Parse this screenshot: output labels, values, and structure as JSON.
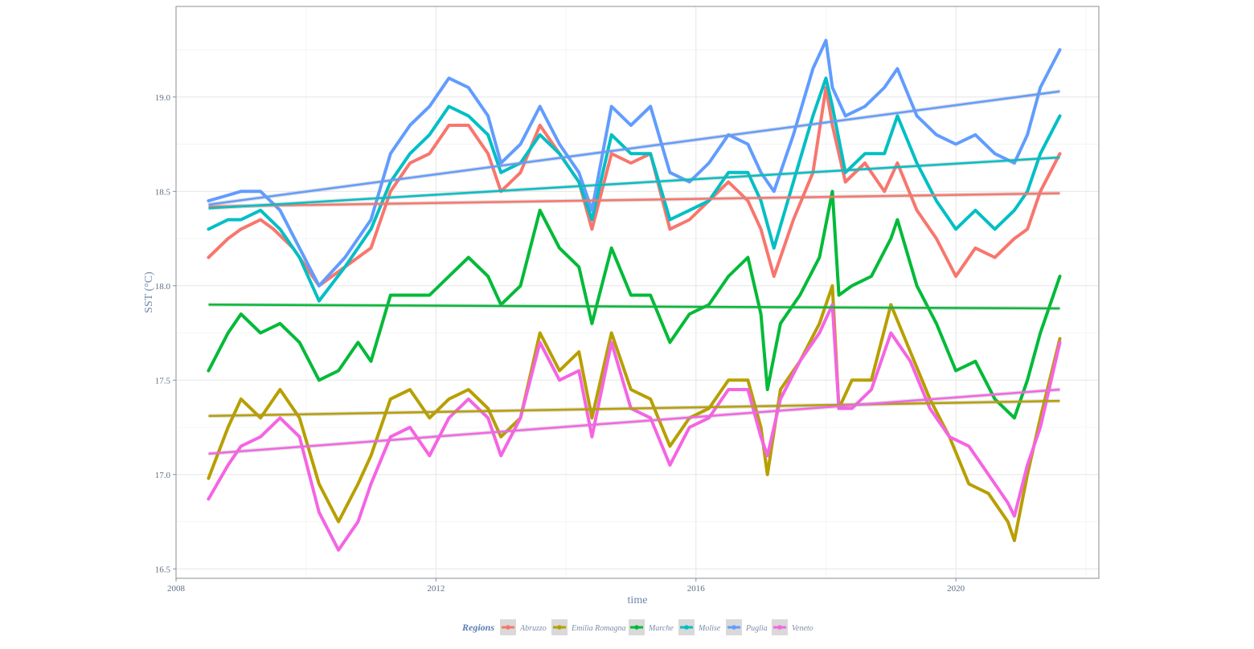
{
  "chart_data": {
    "type": "line",
    "xlabel": "time",
    "ylabel": "SST (°C)",
    "xlim": [
      2008,
      2022.2
    ],
    "ylim": [
      16.45,
      19.48
    ],
    "x_ticks": [
      2008,
      2012,
      2016,
      2020
    ],
    "y_ticks": [
      16.5,
      17.0,
      17.5,
      18.0,
      18.5,
      19.0
    ],
    "x_tick_labels": [
      "2008",
      "2012",
      "2016",
      "2020"
    ],
    "y_tick_labels": [
      "16.5",
      "17.0",
      "17.5",
      "18.0",
      "18.5",
      "19.0"
    ],
    "grid": true,
    "legend_title": "Regions",
    "legend_position": "bottom",
    "series": [
      {
        "name": "Abruzzo",
        "color": "#F8766D",
        "x": [
          2008.5,
          2008.8,
          2009.0,
          2009.3,
          2009.5,
          2009.8,
          2010.2,
          2010.6,
          2011.0,
          2011.3,
          2011.6,
          2011.9,
          2012.2,
          2012.5,
          2012.8,
          2013.0,
          2013.3,
          2013.6,
          2013.9,
          2014.2,
          2014.4,
          2014.7,
          2015.0,
          2015.3,
          2015.6,
          2015.9,
          2016.2,
          2016.5,
          2016.8,
          2017.0,
          2017.2,
          2017.5,
          2017.8,
          2018.0,
          2018.1,
          2018.3,
          2018.6,
          2018.9,
          2019.1,
          2019.4,
          2019.7,
          2020.0,
          2020.3,
          2020.6,
          2020.9,
          2021.1,
          2021.3,
          2021.6
        ],
        "y": [
          18.15,
          18.25,
          18.3,
          18.35,
          18.3,
          18.2,
          18.0,
          18.1,
          18.2,
          18.5,
          18.65,
          18.7,
          18.85,
          18.85,
          18.7,
          18.5,
          18.6,
          18.85,
          18.7,
          18.55,
          18.3,
          18.7,
          18.65,
          18.7,
          18.3,
          18.35,
          18.45,
          18.55,
          18.45,
          18.3,
          18.05,
          18.35,
          18.6,
          19.05,
          18.85,
          18.55,
          18.65,
          18.5,
          18.65,
          18.4,
          18.25,
          18.05,
          18.2,
          18.15,
          18.25,
          18.3,
          18.5,
          18.7
        ]
      },
      {
        "name": "Emilia Romagna",
        "color": "#B79F00",
        "x": [
          2008.5,
          2008.8,
          2009.0,
          2009.3,
          2009.6,
          2009.9,
          2010.2,
          2010.5,
          2010.8,
          2011.0,
          2011.3,
          2011.6,
          2011.9,
          2012.2,
          2012.5,
          2012.8,
          2013.0,
          2013.3,
          2013.6,
          2013.9,
          2014.2,
          2014.4,
          2014.7,
          2015.0,
          2015.3,
          2015.6,
          2015.9,
          2016.2,
          2016.5,
          2016.8,
          2017.0,
          2017.1,
          2017.3,
          2017.6,
          2017.9,
          2018.1,
          2018.2,
          2018.4,
          2018.7,
          2019.0,
          2019.3,
          2019.6,
          2019.9,
          2020.2,
          2020.5,
          2020.8,
          2020.9,
          2021.1,
          2021.3,
          2021.6
        ],
        "y": [
          16.98,
          17.25,
          17.4,
          17.3,
          17.45,
          17.3,
          16.95,
          16.75,
          16.95,
          17.1,
          17.4,
          17.45,
          17.3,
          17.4,
          17.45,
          17.35,
          17.2,
          17.3,
          17.75,
          17.55,
          17.65,
          17.3,
          17.75,
          17.45,
          17.4,
          17.15,
          17.3,
          17.35,
          17.5,
          17.5,
          17.25,
          17.0,
          17.45,
          17.6,
          17.8,
          18.0,
          17.35,
          17.5,
          17.5,
          17.9,
          17.65,
          17.4,
          17.2,
          16.95,
          16.9,
          16.75,
          16.65,
          17.0,
          17.3,
          17.72
        ]
      },
      {
        "name": "Marche",
        "color": "#00BA38",
        "x": [
          2008.5,
          2008.8,
          2009.0,
          2009.3,
          2009.6,
          2009.9,
          2010.2,
          2010.5,
          2010.8,
          2011.0,
          2011.3,
          2011.6,
          2011.9,
          2012.2,
          2012.5,
          2012.8,
          2013.0,
          2013.3,
          2013.6,
          2013.9,
          2014.2,
          2014.4,
          2014.7,
          2015.0,
          2015.3,
          2015.6,
          2015.9,
          2016.2,
          2016.5,
          2016.8,
          2017.0,
          2017.1,
          2017.3,
          2017.6,
          2017.9,
          2018.1,
          2018.2,
          2018.4,
          2018.7,
          2019.0,
          2019.1,
          2019.4,
          2019.7,
          2020.0,
          2020.3,
          2020.6,
          2020.9,
          2021.1,
          2021.3,
          2021.6
        ],
        "y": [
          17.55,
          17.75,
          17.85,
          17.75,
          17.8,
          17.7,
          17.5,
          17.55,
          17.7,
          17.6,
          17.95,
          17.95,
          17.95,
          18.05,
          18.15,
          18.05,
          17.9,
          18.0,
          18.4,
          18.2,
          18.1,
          17.8,
          18.2,
          17.95,
          17.95,
          17.7,
          17.85,
          17.9,
          18.05,
          18.15,
          17.85,
          17.45,
          17.8,
          17.95,
          18.15,
          18.5,
          17.95,
          18.0,
          18.05,
          18.25,
          18.35,
          18.0,
          17.8,
          17.55,
          17.6,
          17.4,
          17.3,
          17.5,
          17.75,
          18.05
        ]
      },
      {
        "name": "Molise",
        "color": "#00BFC4",
        "x": [
          2008.5,
          2008.8,
          2009.0,
          2009.3,
          2009.6,
          2009.9,
          2010.2,
          2010.6,
          2011.0,
          2011.3,
          2011.6,
          2011.9,
          2012.2,
          2012.5,
          2012.8,
          2013.0,
          2013.3,
          2013.6,
          2013.9,
          2014.2,
          2014.4,
          2014.7,
          2015.0,
          2015.3,
          2015.6,
          2015.9,
          2016.2,
          2016.5,
          2016.8,
          2017.0,
          2017.2,
          2017.5,
          2017.8,
          2018.0,
          2018.1,
          2018.3,
          2018.6,
          2018.9,
          2019.1,
          2019.4,
          2019.7,
          2020.0,
          2020.3,
          2020.6,
          2020.9,
          2021.1,
          2021.3,
          2021.6
        ],
        "y": [
          18.3,
          18.35,
          18.35,
          18.4,
          18.3,
          18.15,
          17.92,
          18.1,
          18.3,
          18.55,
          18.7,
          18.8,
          18.95,
          18.9,
          18.8,
          18.6,
          18.65,
          18.8,
          18.7,
          18.55,
          18.35,
          18.8,
          18.7,
          18.7,
          18.35,
          18.4,
          18.45,
          18.6,
          18.6,
          18.45,
          18.2,
          18.55,
          18.9,
          19.1,
          18.95,
          18.6,
          18.7,
          18.7,
          18.9,
          18.65,
          18.45,
          18.3,
          18.4,
          18.3,
          18.4,
          18.5,
          18.7,
          18.9
        ]
      },
      {
        "name": "Puglia",
        "color": "#619CFF",
        "x": [
          2008.5,
          2008.8,
          2009.0,
          2009.3,
          2009.6,
          2009.9,
          2010.2,
          2010.6,
          2011.0,
          2011.3,
          2011.6,
          2011.9,
          2012.2,
          2012.5,
          2012.8,
          2013.0,
          2013.3,
          2013.6,
          2013.9,
          2014.2,
          2014.4,
          2014.7,
          2015.0,
          2015.3,
          2015.6,
          2015.9,
          2016.2,
          2016.5,
          2016.8,
          2017.0,
          2017.2,
          2017.5,
          2017.8,
          2018.0,
          2018.1,
          2018.3,
          2018.6,
          2018.9,
          2019.1,
          2019.4,
          2019.7,
          2020.0,
          2020.3,
          2020.6,
          2020.9,
          2021.1,
          2021.3,
          2021.6
        ],
        "y": [
          18.45,
          18.48,
          18.5,
          18.5,
          18.4,
          18.2,
          18.0,
          18.15,
          18.35,
          18.7,
          18.85,
          18.95,
          19.1,
          19.05,
          18.9,
          18.65,
          18.75,
          18.95,
          18.75,
          18.6,
          18.4,
          18.95,
          18.85,
          18.95,
          18.6,
          18.55,
          18.65,
          18.8,
          18.75,
          18.6,
          18.5,
          18.8,
          19.15,
          19.3,
          19.05,
          18.9,
          18.95,
          19.05,
          19.15,
          18.9,
          18.8,
          18.75,
          18.8,
          18.7,
          18.65,
          18.8,
          19.05,
          19.25
        ]
      },
      {
        "name": "Veneto",
        "color": "#F564E3",
        "x": [
          2008.5,
          2008.8,
          2009.0,
          2009.3,
          2009.6,
          2009.9,
          2010.2,
          2010.5,
          2010.8,
          2011.0,
          2011.3,
          2011.6,
          2011.9,
          2012.2,
          2012.5,
          2012.8,
          2013.0,
          2013.3,
          2013.6,
          2013.9,
          2014.2,
          2014.4,
          2014.7,
          2015.0,
          2015.3,
          2015.6,
          2015.9,
          2016.2,
          2016.5,
          2016.8,
          2017.0,
          2017.1,
          2017.3,
          2017.6,
          2017.9,
          2018.1,
          2018.2,
          2018.4,
          2018.7,
          2019.0,
          2019.3,
          2019.6,
          2019.9,
          2020.2,
          2020.5,
          2020.8,
          2020.9,
          2021.1,
          2021.3,
          2021.6
        ],
        "y": [
          16.87,
          17.05,
          17.15,
          17.2,
          17.3,
          17.2,
          16.8,
          16.6,
          16.75,
          16.95,
          17.2,
          17.25,
          17.1,
          17.3,
          17.4,
          17.3,
          17.1,
          17.3,
          17.7,
          17.5,
          17.55,
          17.2,
          17.7,
          17.35,
          17.3,
          17.05,
          17.25,
          17.3,
          17.45,
          17.45,
          17.2,
          17.1,
          17.4,
          17.6,
          17.75,
          17.9,
          17.35,
          17.35,
          17.45,
          17.75,
          17.6,
          17.35,
          17.2,
          17.15,
          17.0,
          16.85,
          16.78,
          17.05,
          17.25,
          17.7
        ]
      }
    ],
    "trend_lines": [
      {
        "name": "Abruzzo",
        "color": "#F8766D",
        "x": [
          2008.5,
          2021.6
        ],
        "y": [
          18.42,
          18.49
        ]
      },
      {
        "name": "Emilia Romagna",
        "color": "#B79F00",
        "x": [
          2008.5,
          2021.6
        ],
        "y": [
          17.31,
          17.39
        ]
      },
      {
        "name": "Marche",
        "color": "#00BA38",
        "x": [
          2008.5,
          2021.6
        ],
        "y": [
          17.9,
          17.88
        ]
      },
      {
        "name": "Molise",
        "color": "#00BFC4",
        "x": [
          2008.5,
          2021.6
        ],
        "y": [
          18.41,
          18.68
        ]
      },
      {
        "name": "Puglia",
        "color": "#619CFF",
        "x": [
          2008.5,
          2021.6
        ],
        "y": [
          18.43,
          19.03
        ]
      },
      {
        "name": "Veneto",
        "color": "#F564E3",
        "x": [
          2008.5,
          2021.6
        ],
        "y": [
          17.11,
          17.45
        ]
      }
    ]
  }
}
